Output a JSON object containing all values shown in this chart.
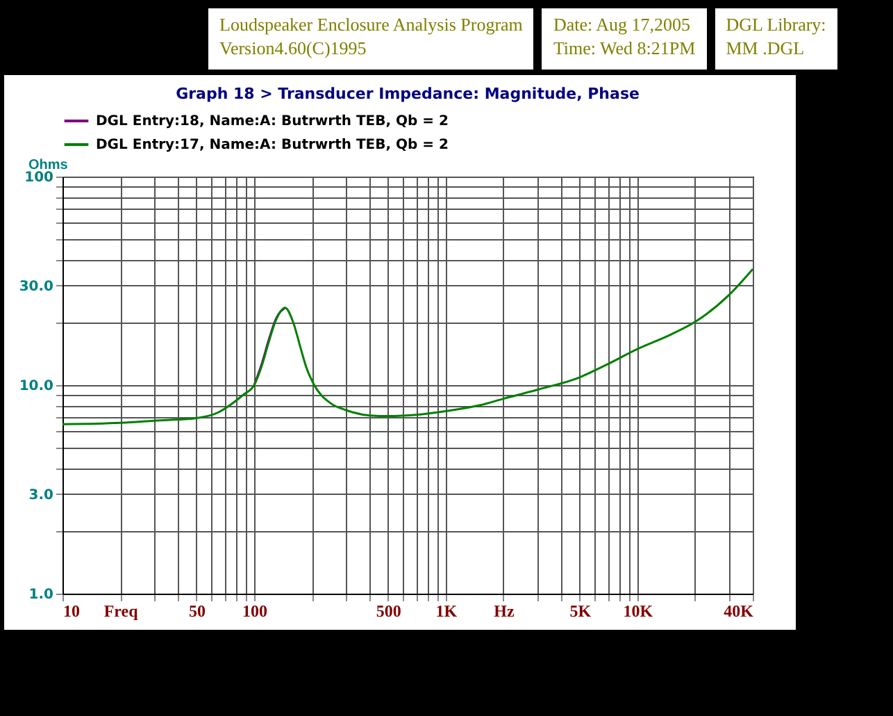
{
  "chart_data": {
    "type": "line",
    "title": "Graph 18 > Transducer Impedance: Magnitude, Phase",
    "ylabel": "Ohms",
    "annotations": [
      "Loudspeaker Enclosure Analysis Program",
      "Version4.60(C)1995",
      "Date: Aug 17,2005",
      "Time: Wed  8:21PM",
      "DGL Library:",
      "MM .DGL"
    ],
    "log": "xy",
    "grid": true,
    "legend": "top",
    "line_style": "solid",
    "x": [
      10,
      20,
      30,
      50,
      65,
      76,
      88,
      100,
      110,
      119,
      130,
      145,
      160,
      175,
      187,
      206,
      250,
      300,
      403,
      500,
      700,
      1000,
      1500,
      2000,
      3000,
      5000,
      7000,
      10000,
      15000,
      20000,
      30000,
      40000
    ],
    "series": [
      {
        "name": "DGL Entry:18, Name:A: Butrwrth TEB, Qb = 2",
        "color": "#800080",
        "values": [
          null,
          null,
          null,
          null,
          null,
          null,
          null,
          10,
          12.8,
          16.4,
          20.8,
          23.5,
          null,
          null,
          null,
          null,
          null,
          null,
          null,
          null,
          null,
          null,
          null,
          null,
          null,
          null,
          null,
          null,
          null,
          null,
          null,
          null
        ]
      },
      {
        "name": "DGL Entry:17, Name:A: Butrwrth TEB, Qb = 2",
        "color": "#008000",
        "values": [
          6.5,
          6.6,
          6.75,
          6.95,
          7.4,
          8.1,
          9,
          10,
          12.5,
          16,
          20.5,
          23.5,
          20,
          15,
          12.2,
          10,
          8.2,
          7.6,
          7.15,
          7.1,
          7.2,
          7.5,
          8,
          8.6,
          9.5,
          10.9,
          12.6,
          14.9,
          17.5,
          20.1,
          27,
          36
        ]
      }
    ],
    "xlim": [
      10,
      40000
    ],
    "xticks": [
      {
        "value": 10,
        "label": "10"
      },
      {
        "value": 20,
        "label": "Freq"
      },
      {
        "value": 30,
        "label": null
      },
      {
        "value": 40,
        "label": null
      },
      {
        "value": 50,
        "label": "50"
      },
      {
        "value": 60,
        "label": null
      },
      {
        "value": 70,
        "label": null
      },
      {
        "value": 80,
        "label": null
      },
      {
        "value": 90,
        "label": null
      },
      {
        "value": 100,
        "label": "100"
      },
      {
        "value": 200,
        "label": null
      },
      {
        "value": 300,
        "label": null
      },
      {
        "value": 400,
        "label": null
      },
      {
        "value": 500,
        "label": "500"
      },
      {
        "value": 600,
        "label": null
      },
      {
        "value": 700,
        "label": null
      },
      {
        "value": 800,
        "label": null
      },
      {
        "value": 900,
        "label": null
      },
      {
        "value": 1000,
        "label": "1K"
      },
      {
        "value": 2000,
        "label": "Hz"
      },
      {
        "value": 3000,
        "label": null
      },
      {
        "value": 4000,
        "label": null
      },
      {
        "value": 5000,
        "label": "5K"
      },
      {
        "value": 6000,
        "label": null
      },
      {
        "value": 7000,
        "label": null
      },
      {
        "value": 8000,
        "label": null
      },
      {
        "value": 9000,
        "label": null
      },
      {
        "value": 10000,
        "label": "10K"
      },
      {
        "value": 20000,
        "label": null
      },
      {
        "value": 30000,
        "label": null
      },
      {
        "value": 40000,
        "label": "40K"
      }
    ],
    "ylim": [
      1,
      100
    ],
    "yticks": [
      {
        "value": 1,
        "label": "1.0"
      },
      {
        "value": 2,
        "label": null
      },
      {
        "value": 3,
        "label": "3.0"
      },
      {
        "value": 4,
        "label": null
      },
      {
        "value": 5,
        "label": null
      },
      {
        "value": 6,
        "label": null
      },
      {
        "value": 7,
        "label": null
      },
      {
        "value": 8,
        "label": null
      },
      {
        "value": 9,
        "label": null
      },
      {
        "value": 10,
        "label": "10.0"
      },
      {
        "value": 20,
        "label": null
      },
      {
        "value": 30,
        "label": "30.0"
      },
      {
        "value": 40,
        "label": null
      },
      {
        "value": 50,
        "label": null
      },
      {
        "value": 60,
        "label": null
      },
      {
        "value": 70,
        "label": null
      },
      {
        "value": 80,
        "label": null
      },
      {
        "value": 90,
        "label": null
      },
      {
        "value": 100,
        "label": "100"
      }
    ]
  }
}
